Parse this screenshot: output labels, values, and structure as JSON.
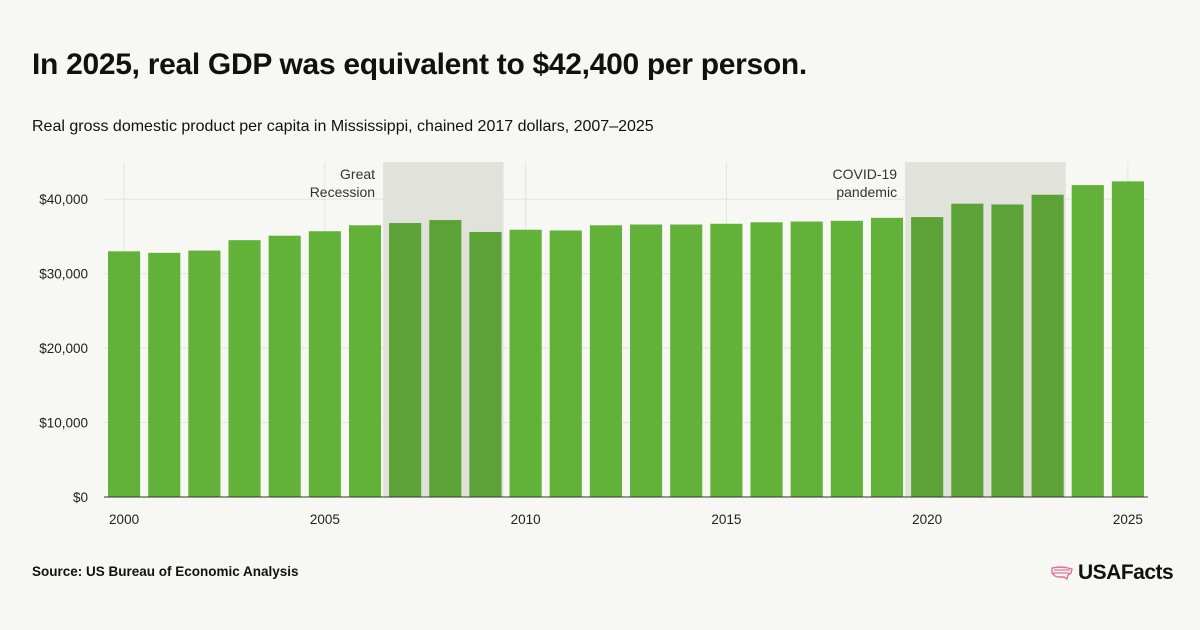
{
  "headline": "In 2025, real GDP was equivalent to $42,400 per person.",
  "subtitle": "Real gross domestic product per capita in Mississippi, chained 2017 dollars, 2007–2025",
  "source": "Source: US Bureau of Economic Analysis",
  "logo": {
    "text": "USAFacts",
    "icon": "us-map-stripes-icon",
    "color": "#e06fa0"
  },
  "colors": {
    "bar": "#62b23a",
    "bar_shaded": "#5ca236",
    "shade": "#e2e2dd",
    "grid": "#e5e5e0",
    "axis": "#333333"
  },
  "chart_data": {
    "type": "bar",
    "x": [
      2000,
      2001,
      2002,
      2003,
      2004,
      2005,
      2006,
      2007,
      2008,
      2009,
      2010,
      2011,
      2012,
      2013,
      2014,
      2015,
      2016,
      2017,
      2018,
      2019,
      2020,
      2021,
      2022,
      2023,
      2024,
      2025
    ],
    "values": [
      33000,
      32800,
      33100,
      34500,
      35100,
      35700,
      36500,
      36800,
      37200,
      35600,
      35900,
      35800,
      36500,
      36600,
      36600,
      36700,
      36900,
      37000,
      37100,
      37500,
      37600,
      39400,
      39300,
      40600,
      41900,
      42400
    ],
    "ylim": [
      0,
      45000
    ],
    "yticks": [
      0,
      10000,
      20000,
      30000,
      40000
    ],
    "ytick_labels": [
      "$0",
      "$10,000",
      "$20,000",
      "$30,000",
      "$40,000"
    ],
    "xtick_years": [
      2000,
      2005,
      2010,
      2015,
      2020,
      2025
    ],
    "xtick_labels": [
      "2000",
      "2005",
      "2010",
      "2015",
      "2020",
      "2025"
    ],
    "shaded_periods": [
      {
        "label_lines": [
          "Great",
          "Recession"
        ],
        "start": 2007,
        "end": 2009
      },
      {
        "label_lines": [
          "COVID-19",
          "pandemic"
        ],
        "start": 2020,
        "end": 2023
      }
    ],
    "grid": true
  }
}
